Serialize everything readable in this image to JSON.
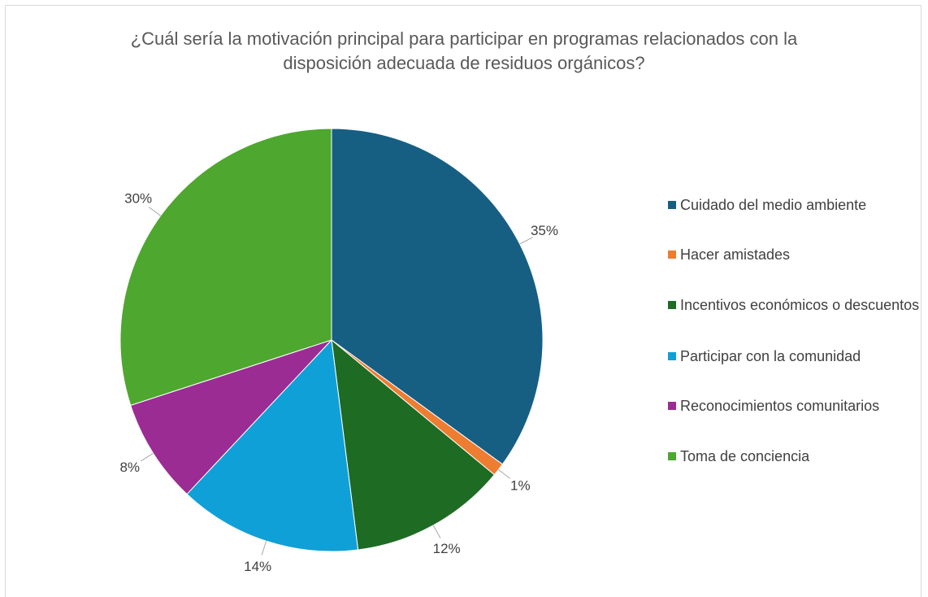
{
  "chart_data": {
    "type": "pie",
    "title": "¿Cuál sería la motivación principal para participar en programas relacionados con la disposición adecuada de residuos orgánicos?",
    "categories": [
      "Cuidado del medio ambiente",
      "Hacer amistades",
      "Incentivos económicos o descuentos",
      "Participar con la comunidad",
      "Reconocimientos comunitarios",
      "Toma de conciencia"
    ],
    "values": [
      35,
      1,
      12,
      14,
      8,
      30
    ],
    "value_labels": [
      "35%",
      "1%",
      "12%",
      "14%",
      "8%",
      "30%"
    ],
    "colors": [
      "#175e83",
      "#ed7d31",
      "#1e6b24",
      "#0fa0d8",
      "#9b2c93",
      "#4ea72e"
    ],
    "legend": "right"
  }
}
